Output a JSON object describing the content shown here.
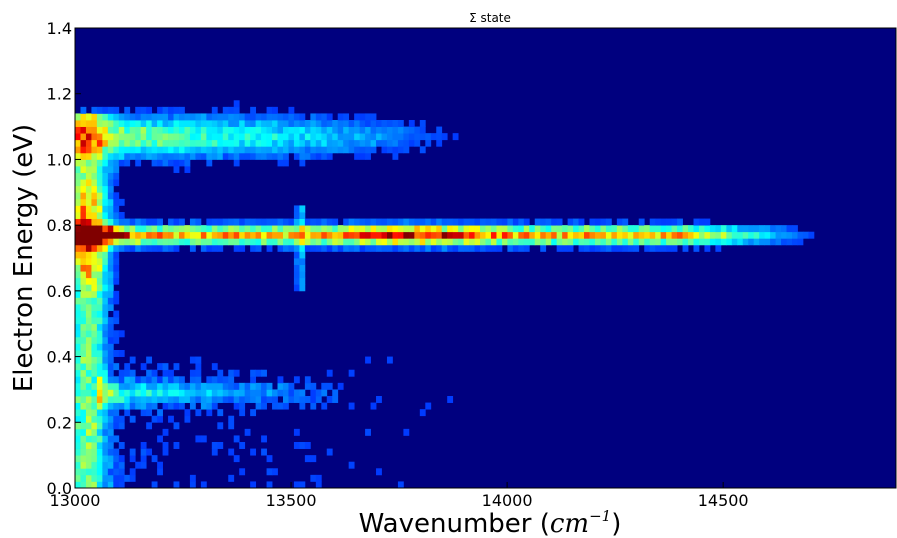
{
  "chart_data": {
    "type": "heatmap",
    "title": "Σ state",
    "xlabel": "Wavenumber (",
    "xlabel_math": "cm",
    "xlabel_sup": "−1",
    "xlabel_close": ")",
    "ylabel": "Electron Energy (eV)",
    "xlim": [
      13000,
      14900
    ],
    "ylim": [
      0.0,
      1.4
    ],
    "xticks": [
      13000,
      13500,
      14000,
      14500
    ],
    "xtick_labels": [
      "13000",
      "13500",
      "14000",
      "14500"
    ],
    "yticks": [
      0.0,
      0.2,
      0.4,
      0.6,
      0.8,
      1.0,
      1.2,
      1.4
    ],
    "ytick_labels": [
      "0.0",
      "0.2",
      "0.4",
      "0.6",
      "0.8",
      "1.0",
      "1.2",
      "1.4"
    ],
    "colormap": "jet",
    "background_color": "#00007f",
    "grid": false,
    "features": [
      {
        "kind": "band",
        "center_energy": 0.77,
        "x_start": 13000,
        "x_end": 14750,
        "peak_intensity": 1.0
      },
      {
        "kind": "band",
        "center_energy": 1.07,
        "x_start": 13000,
        "x_end": 13900,
        "peak_intensity": 0.45
      },
      {
        "kind": "band",
        "center_energy": 0.29,
        "x_start": 13050,
        "x_end": 13700,
        "peak_intensity": 0.3
      },
      {
        "kind": "column",
        "x": 13030,
        "energy_range": [
          0.0,
          1.15
        ],
        "peak_intensity": 1.0
      },
      {
        "kind": "line",
        "x": 13520,
        "energy_range": [
          0.6,
          0.85
        ],
        "peak_intensity": 0.8
      }
    ]
  }
}
